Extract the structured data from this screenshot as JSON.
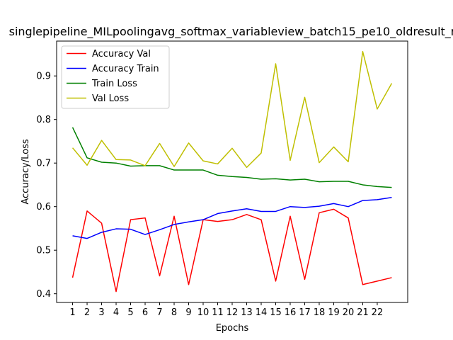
{
  "chart_data": {
    "type": "line",
    "title": "singlepipeline_MILpoolingavg_softmax_variableview_batch15_pe10_oldresult_r",
    "xlabel": "Epochs",
    "ylabel": "Accuracy/Loss",
    "x": [
      1,
      2,
      3,
      4,
      5,
      6,
      7,
      8,
      9,
      10,
      11,
      12,
      13,
      14,
      15,
      16,
      17,
      18,
      19,
      20,
      21,
      22,
      23
    ],
    "x_tick_labels": [
      "1",
      "2",
      "3",
      "4",
      "5",
      "6",
      "7",
      "8",
      "9",
      "10",
      "11",
      "12",
      "13",
      "14",
      "15",
      "16",
      "17",
      "18",
      "19",
      "20",
      "21",
      "22"
    ],
    "y_ticks": [
      0.4,
      0.5,
      0.6,
      0.7,
      0.8,
      0.9
    ],
    "xlim": [
      -0.1,
      24.1
    ],
    "ylim": [
      0.38,
      0.98
    ],
    "grid": false,
    "legend_position": "upper-left",
    "series": [
      {
        "name": "Accuracy Val",
        "color": "#ff0000",
        "values": [
          0.437,
          0.59,
          0.562,
          0.405,
          0.57,
          0.574,
          0.441,
          0.578,
          0.421,
          0.57,
          0.566,
          0.57,
          0.582,
          0.57,
          0.429,
          0.578,
          0.433,
          0.586,
          0.594,
          0.574,
          0.421,
          0.429,
          0.437
        ]
      },
      {
        "name": "Accuracy Train",
        "color": "#0000ff",
        "values": [
          0.533,
          0.527,
          0.541,
          0.549,
          0.548,
          0.536,
          0.547,
          0.559,
          0.565,
          0.57,
          0.584,
          0.59,
          0.595,
          0.589,
          0.589,
          0.6,
          0.598,
          0.601,
          0.607,
          0.6,
          0.614,
          0.616,
          0.621
        ]
      },
      {
        "name": "Train Loss",
        "color": "#008000",
        "values": [
          0.782,
          0.712,
          0.702,
          0.7,
          0.693,
          0.694,
          0.694,
          0.684,
          0.684,
          0.684,
          0.672,
          0.669,
          0.667,
          0.663,
          0.664,
          0.661,
          0.663,
          0.657,
          0.658,
          0.658,
          0.65,
          0.646,
          0.644
        ]
      },
      {
        "name": "Val Loss",
        "color": "#bfbf00",
        "values": [
          0.735,
          0.695,
          0.752,
          0.708,
          0.707,
          0.694,
          0.745,
          0.692,
          0.746,
          0.705,
          0.698,
          0.734,
          0.69,
          0.723,
          0.928,
          0.706,
          0.851,
          0.701,
          0.737,
          0.703,
          0.956,
          0.824,
          0.883
        ]
      }
    ]
  }
}
